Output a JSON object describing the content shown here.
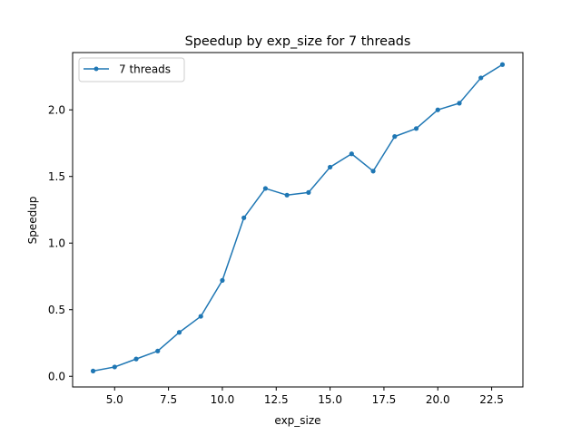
{
  "chart_data": {
    "type": "line",
    "title": "Speedup by exp_size for 7 threads",
    "xlabel": "exp_size",
    "ylabel": "Speedup",
    "xlim": [
      3.05,
      23.95
    ],
    "ylim": [
      -0.08,
      2.43
    ],
    "xticks": [
      5.0,
      7.5,
      10.0,
      12.5,
      15.0,
      17.5,
      20.0,
      22.5
    ],
    "xtick_labels": [
      "5.0",
      "7.5",
      "10.0",
      "12.5",
      "15.0",
      "17.5",
      "20.0",
      "22.5"
    ],
    "yticks": [
      0.0,
      0.5,
      1.0,
      1.5,
      2.0
    ],
    "ytick_labels": [
      "0.0",
      "0.5",
      "1.0",
      "1.5",
      "2.0"
    ],
    "grid": false,
    "legend_position": "top-left",
    "series": [
      {
        "name": "7 threads",
        "color": "#1f77b4",
        "marker": "circle",
        "x": [
          4,
          5,
          6,
          7,
          8,
          9,
          10,
          11,
          12,
          13,
          14,
          15,
          16,
          17,
          18,
          19,
          20,
          21,
          22,
          23
        ],
        "y": [
          0.04,
          0.07,
          0.13,
          0.19,
          0.33,
          0.45,
          0.72,
          1.19,
          1.41,
          1.36,
          1.38,
          1.57,
          1.67,
          1.54,
          1.8,
          1.86,
          2.0,
          2.05,
          2.24,
          2.34
        ]
      }
    ]
  }
}
